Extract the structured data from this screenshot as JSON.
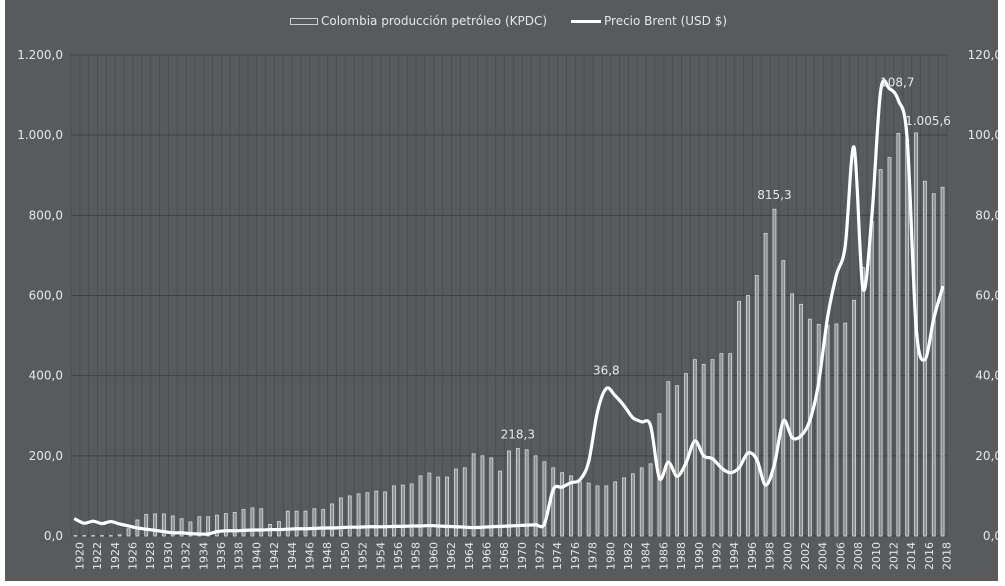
{
  "chart_data": {
    "type": "bar+line",
    "title": "",
    "legend": {
      "position": "top",
      "entries": [
        {
          "label": "Colombia producción petróleo (KPDC)",
          "type": "bar",
          "axis": "left"
        },
        {
          "label": "Precio Brent (USD $)",
          "type": "line",
          "axis": "right"
        }
      ]
    },
    "colors": {
      "background": "#585b5d",
      "bar_fill": "#8c8f91",
      "bar_stroke": "#d9d9d9",
      "line": "#ffffff",
      "grid": "#3f4244",
      "text": "#e6e6e6"
    },
    "x": [
      1920,
      1921,
      1922,
      1923,
      1924,
      1925,
      1926,
      1927,
      1928,
      1929,
      1930,
      1931,
      1932,
      1933,
      1934,
      1935,
      1936,
      1937,
      1938,
      1939,
      1940,
      1941,
      1942,
      1943,
      1944,
      1945,
      1946,
      1947,
      1948,
      1949,
      1950,
      1951,
      1952,
      1953,
      1954,
      1955,
      1956,
      1957,
      1958,
      1959,
      1960,
      1961,
      1962,
      1963,
      1964,
      1965,
      1966,
      1967,
      1968,
      1969,
      1970,
      1971,
      1972,
      1973,
      1974,
      1975,
      1976,
      1977,
      1978,
      1979,
      1980,
      1981,
      1982,
      1983,
      1984,
      1985,
      1986,
      1987,
      1988,
      1989,
      1990,
      1991,
      1992,
      1993,
      1994,
      1995,
      1996,
      1997,
      1998,
      1999,
      2000,
      2001,
      2002,
      2003,
      2004,
      2005,
      2006,
      2007,
      2008,
      2009,
      2010,
      2011,
      2012,
      2013,
      2014,
      2015,
      2016,
      2017,
      2018
    ],
    "x_tick_labels": [
      "1920",
      "1922",
      "1924",
      "1926",
      "1928",
      "1930",
      "1932",
      "1934",
      "1936",
      "1938",
      "1940",
      "1942",
      "1944",
      "1946",
      "1948",
      "1950",
      "1952",
      "1954",
      "1956",
      "1958",
      "1960",
      "1962",
      "1964",
      "1966",
      "1968",
      "1970",
      "1972",
      "1974",
      "1976",
      "1978",
      "1980",
      "1982",
      "1984",
      "1986",
      "1988",
      "1990",
      "1992",
      "1994",
      "1996",
      "1998",
      "2000",
      "2002",
      "2004",
      "2006",
      "2008",
      "2010",
      "2012",
      "2014",
      "2016",
      "2018"
    ],
    "series": [
      {
        "name": "Colombia producción petróleo (KPDC)",
        "type": "bar",
        "axis": "left",
        "values": [
          1,
          1,
          1,
          1,
          1,
          3,
          18,
          40,
          54,
          55,
          55,
          50,
          43,
          35,
          48,
          48,
          52,
          56,
          59,
          66,
          70,
          68,
          29,
          36,
          62,
          62,
          62,
          68,
          66,
          80,
          95,
          100,
          105,
          108,
          112,
          110,
          125,
          127,
          130,
          150,
          157,
          147,
          147,
          167,
          170,
          205,
          200,
          195,
          162,
          212,
          218.3,
          215,
          200,
          185,
          170,
          158,
          150,
          135,
          132,
          125,
          125,
          135,
          145,
          155,
          170,
          180,
          305,
          385,
          375,
          405,
          440,
          428,
          440,
          455,
          455,
          585,
          600,
          650,
          755,
          815.3,
          687,
          604,
          578,
          541,
          528,
          526,
          529,
          531,
          588,
          670,
          785,
          914,
          944,
          1004,
          990,
          1005.6,
          885,
          854,
          870
        ]
      },
      {
        "name": "Precio Brent (USD $)",
        "type": "line",
        "axis": "right",
        "values": [
          4.2,
          3.2,
          3.7,
          3.1,
          3.6,
          3.0,
          2.5,
          2.0,
          1.7,
          1.4,
          1.1,
          0.8,
          0.8,
          0.6,
          0.5,
          0.5,
          1.1,
          1.3,
          1.3,
          1.4,
          1.5,
          1.5,
          1.6,
          1.6,
          1.7,
          1.8,
          1.8,
          1.9,
          2.0,
          2.0,
          2.1,
          2.2,
          2.2,
          2.3,
          2.3,
          2.3,
          2.4,
          2.4,
          2.5,
          2.5,
          2.6,
          2.5,
          2.4,
          2.3,
          2.2,
          2.1,
          2.2,
          2.3,
          2.4,
          2.5,
          2.6,
          2.7,
          2.8,
          3.0,
          11.6,
          12.2,
          13.3,
          14.0,
          18.5,
          31.0,
          36.8,
          35.0,
          32.5,
          29.5,
          28.5,
          27.5,
          14.4,
          18.4,
          14.9,
          18.2,
          23.7,
          20.0,
          19.3,
          17.0,
          15.8,
          17.0,
          20.7,
          19.1,
          12.7,
          17.9,
          28.7,
          24.5,
          25.0,
          28.8,
          38.3,
          54.5,
          65.1,
          72.4,
          97.0,
          61.7,
          79.6,
          111.0,
          111.6,
          108.7,
          99.0,
          52.4,
          44.0,
          54.2,
          62.0
        ]
      }
    ],
    "y_left": {
      "label": "",
      "range": [
        0,
        1200
      ],
      "ticks": [
        "0,0",
        "200,0",
        "400,0",
        "600,0",
        "800,0",
        "1.000,0",
        "1.200,0"
      ]
    },
    "y_right": {
      "label": "",
      "range": [
        0,
        120
      ],
      "ticks": [
        "0,0",
        "20,0",
        "40,0",
        "60,0",
        "80,0",
        "100,0",
        "120,0"
      ]
    },
    "annotations": [
      {
        "text": "218,3",
        "year": 1970,
        "series": "bar"
      },
      {
        "text": "36,8",
        "year": 1980,
        "series": "line"
      },
      {
        "text": "815,3",
        "year": 1999,
        "series": "bar"
      },
      {
        "text": "108,7",
        "year": 2013,
        "series": "line"
      },
      {
        "text": "1.005,6",
        "year": 2015,
        "series": "bar"
      }
    ],
    "grid": true
  }
}
